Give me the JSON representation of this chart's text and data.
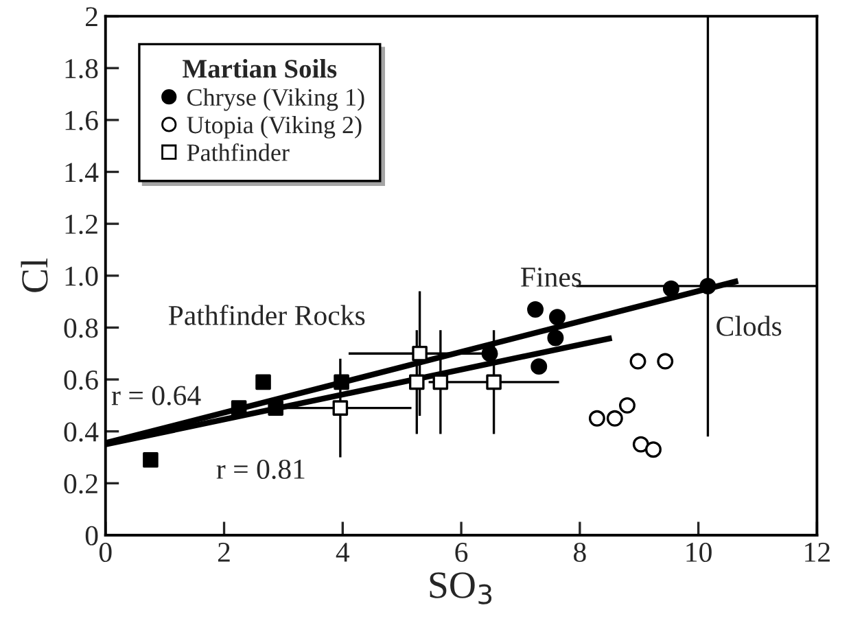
{
  "chart_data": {
    "type": "scatter",
    "xlabel": "SO$_{3}$",
    "ylabel": "Cl",
    "legend_title": "Martian Soils",
    "legend": "top left",
    "grid": false,
    "xlim": [
      0,
      12
    ],
    "xticks": [
      0,
      2,
      4,
      6,
      8,
      10,
      12
    ],
    "ylim": [
      0,
      2
    ],
    "yticks": [
      0,
      0.2,
      0.4,
      0.6,
      0.8,
      {
        "value": 1,
        "label": "1.0"
      },
      1.2,
      1.4,
      1.6,
      1.8,
      2
    ],
    "series": [
      {
        "name": "Chryse (Viking 1)",
        "color": "#000000",
        "marker": "circle",
        "x": [
          6.48,
          7.25,
          7.62,
          7.59,
          7.31,
          9.54,
          10.16
        ],
        "values": [
          0.7,
          0.87,
          0.84,
          0.76,
          0.65,
          0.95,
          0.96
        ],
        "errors": [
          null,
          null,
          null,
          null,
          null,
          null,
          [
            0.38,
            2.0
          ]
        ],
        "xerrors": [
          null,
          null,
          null,
          null,
          null,
          null,
          [
            7.94,
            12
          ]
        ]
      },
      {
        "name": "Utopia (Viking 2)",
        "color": "#ffffff",
        "marker": "circle",
        "x": [
          8.98,
          9.44,
          8.29,
          8.59,
          8.8,
          9.03,
          9.24
        ],
        "values": [
          0.67,
          0.67,
          0.45,
          0.45,
          0.5,
          0.35,
          0.33
        ]
      },
      {
        "name": "Pathfinder",
        "color": "#ffffff",
        "marker": "square",
        "x": [
          3.96,
          5.3,
          5.25,
          5.65,
          6.55
        ],
        "values": [
          0.49,
          0.7,
          0.59,
          0.59,
          0.59
        ],
        "errors": [
          0.19,
          0.24,
          0.2,
          0.2,
          0.2
        ],
        "xerrors": [
          1.2,
          1.2,
          null,
          null,
          1.1
        ]
      },
      {
        "color": "#000000",
        "marker": "square",
        "x": [
          0.76,
          2.25,
          2.66,
          2.87,
          3.98
        ],
        "values": [
          0.29,
          0.49,
          0.59,
          0.49,
          0.59
        ]
      },
      {
        "name": "r = 0.64",
        "type": "line",
        "color": "#000000",
        "x": [
          0,
          10.67
        ],
        "values": [
          0.355,
          0.98
        ]
      },
      {
        "name": "r = 0.81",
        "type": "line",
        "color": "#000000",
        "x": [
          0,
          8.54
        ],
        "values": [
          0.35,
          0.76
        ]
      }
    ],
    "annotations": [
      {
        "text": "Fines",
        "x": 7.25,
        "y": 0.87
      },
      {
        "text": "Clods",
        "x": 10.16,
        "y": 0.96
      },
      {
        "text": "Pathfinder Rocks",
        "x": 2.66,
        "y": 0.59
      }
    ]
  }
}
